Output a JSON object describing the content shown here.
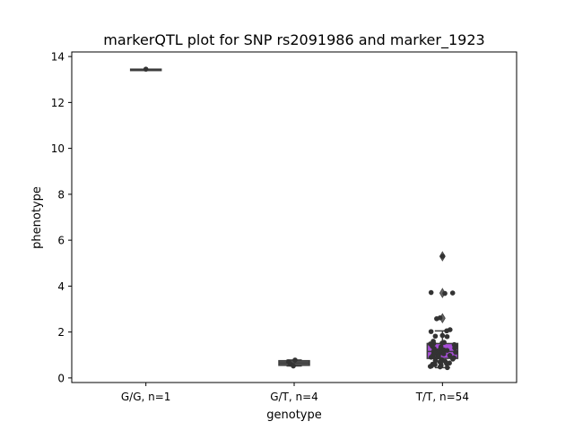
{
  "chart_data": {
    "type": "box",
    "title": "markerQTL plot for SNP rs2091986 and marker_1923",
    "xlabel": "genotype",
    "ylabel": "phenotype",
    "ylim": [
      -0.2,
      14.2
    ],
    "yticks": [
      0,
      2,
      4,
      6,
      8,
      10,
      12,
      14
    ],
    "categories": [
      "G/G, n=1",
      "G/T, n=4",
      "T/T, n=54"
    ],
    "boxes": [
      {
        "category": "G/G, n=1",
        "q1": 13.45,
        "median": 13.45,
        "q3": 13.45,
        "whisker_low": 13.45,
        "whisker_high": 13.45,
        "outliers": [],
        "color": "#555555"
      },
      {
        "category": "G/T, n=4",
        "q1": 0.55,
        "median": 0.65,
        "q3": 0.75,
        "whisker_low": 0.52,
        "whisker_high": 0.78,
        "outliers": [],
        "color": "#555555"
      },
      {
        "category": "T/T, n=54",
        "q1": 0.85,
        "median": 1.15,
        "q3": 1.5,
        "whisker_low": 0.45,
        "whisker_high": 2.05,
        "outliers": [
          2.6,
          3.7,
          5.3
        ],
        "color": "#a64ed6"
      }
    ],
    "points": [
      {
        "category": "G/G, n=1",
        "values": [
          13.45
        ]
      },
      {
        "category": "G/T, n=4",
        "values": [
          0.78,
          0.7,
          0.6,
          0.52
        ]
      },
      {
        "category": "T/T, n=54",
        "values": [
          5.3,
          3.72,
          3.7,
          3.68,
          2.62,
          2.58,
          2.1,
          2.05,
          2.02,
          1.85,
          1.82,
          1.8,
          1.6,
          1.55,
          1.52,
          1.5,
          1.48,
          1.45,
          1.4,
          1.38,
          1.35,
          1.3,
          1.28,
          1.25,
          1.22,
          1.2,
          1.18,
          1.15,
          1.12,
          1.1,
          1.08,
          1.05,
          1.02,
          1.0,
          0.98,
          0.95,
          0.92,
          0.9,
          0.88,
          0.85,
          0.82,
          0.8,
          0.75,
          0.72,
          0.7,
          0.65,
          0.62,
          0.6,
          0.58,
          0.55,
          0.52,
          0.5,
          0.48,
          0.45
        ]
      }
    ]
  }
}
